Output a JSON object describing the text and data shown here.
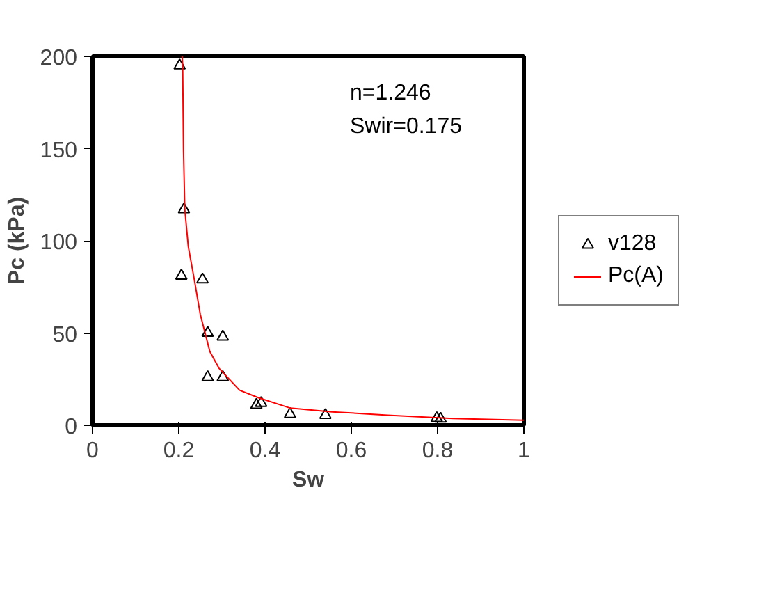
{
  "chart_data": {
    "type": "scatter",
    "xlabel": "Sw",
    "ylabel": "Pc (kPa)",
    "annotations": [
      "n=1.246",
      "Swir=0.175"
    ],
    "xlim": [
      0,
      1
    ],
    "ylim": [
      0,
      200
    ],
    "xticks": [
      0,
      0.2,
      0.4,
      0.6,
      0.8,
      1
    ],
    "yticks": [
      0,
      50,
      100,
      150,
      200
    ],
    "grid": false,
    "legend": "right",
    "marker": "triangle",
    "series": [
      {
        "name": "v128",
        "color": "#000000",
        "x": [
          0.202,
          0.212,
          0.206,
          0.255,
          0.267,
          0.302,
          0.267,
          0.302,
          0.38,
          0.391,
          0.458,
          0.54,
          0.798,
          0.807
        ],
        "values": [
          195,
          117,
          81,
          79,
          50,
          48,
          26,
          26,
          11,
          12,
          6,
          5.5,
          3.8,
          3.5
        ]
      },
      {
        "name": "Pc(A)",
        "type": "line",
        "color": "#ff0000",
        "line_style": "solid",
        "marker": "none",
        "x": [
          0.208,
          0.209,
          0.211,
          0.214,
          0.222,
          0.236,
          0.25,
          0.272,
          0.293,
          0.341,
          0.384,
          0.459,
          0.555,
          0.684,
          0.835,
          1.0
        ],
        "values": [
          200,
          195,
          149,
          117,
          97,
          79,
          60,
          40,
          31,
          19,
          15,
          9.3,
          7.3,
          5.5,
          3.7,
          2.7
        ]
      }
    ]
  }
}
